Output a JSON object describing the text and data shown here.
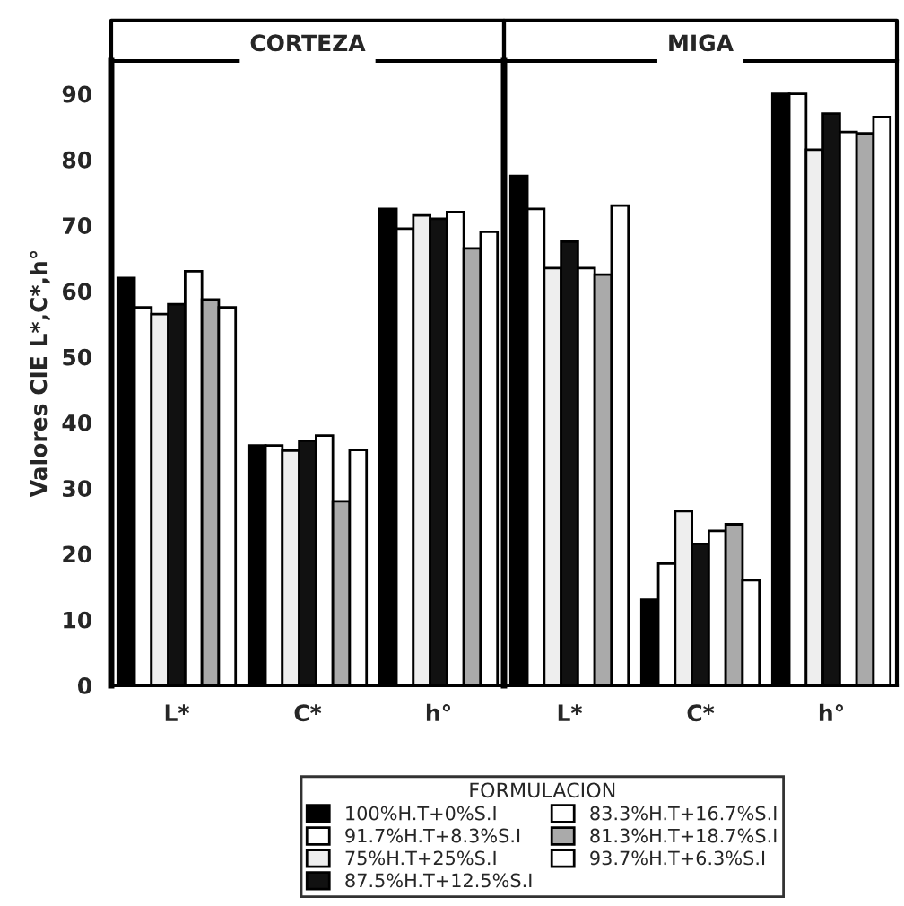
{
  "chart_data": [
    {
      "type": "bar",
      "title": "CORTEZA",
      "ylabel": "Valores CIE L*,C*,h°",
      "categories": [
        "L*",
        "C*",
        "h°"
      ],
      "ylim": [
        0,
        95
      ],
      "yticks": [
        0,
        10,
        20,
        30,
        40,
        50,
        60,
        70,
        80,
        90
      ],
      "legend": "bottom",
      "legend_title": "FORMULACION",
      "grid": false,
      "series": [
        {
          "name": "100%H.T+0%S.I",
          "color": "#000000",
          "values": [
            62,
            36.5,
            72.5
          ]
        },
        {
          "name": "91.7%H.T+8.3%S.I",
          "color": "#ffffff",
          "values": [
            57.5,
            36.5,
            69.5
          ]
        },
        {
          "name": "75%H.T+25%S.I",
          "color": "#eeeeee",
          "values": [
            56.5,
            35.7,
            71.5
          ]
        },
        {
          "name": "87.5%H.T+12.5%S.I",
          "color": "#111111",
          "values": [
            58,
            37.2,
            71
          ]
        },
        {
          "name": "83.3%H.T+16.7%S.I",
          "color": "#ffffff",
          "values": [
            63,
            38,
            72
          ]
        },
        {
          "name": "81.3%H.T+18.7%S.I",
          "color": "#aaaaaa",
          "values": [
            58.7,
            28,
            66.5
          ]
        },
        {
          "name": "93.7%H.T+6.3%S.I",
          "color": "#ffffff",
          "values": [
            57.5,
            35.8,
            69
          ]
        }
      ]
    },
    {
      "type": "bar",
      "title": "MIGA",
      "categories": [
        "L*",
        "C*",
        "h°"
      ],
      "ylim": [
        0,
        95
      ],
      "yticks": [
        0,
        10,
        20,
        30,
        40,
        50,
        60,
        70,
        80,
        90
      ],
      "tick_labels": "x",
      "grid": false,
      "series": [
        {
          "color": "#000000",
          "values": [
            77.5,
            13,
            90
          ]
        },
        {
          "color": "#ffffff",
          "values": [
            72.5,
            18.5,
            90
          ]
        },
        {
          "color": "#eeeeee",
          "values": [
            63.5,
            26.5,
            81.5
          ]
        },
        {
          "color": "#111111",
          "values": [
            67.5,
            21.5,
            87
          ]
        },
        {
          "color": "#ffffff",
          "values": [
            63.5,
            23.5,
            84.2
          ]
        },
        {
          "color": "#aaaaaa",
          "values": [
            62.5,
            24.5,
            84
          ]
        },
        {
          "color": "#ffffff",
          "values": [
            73,
            16,
            86.5
          ]
        }
      ]
    }
  ]
}
